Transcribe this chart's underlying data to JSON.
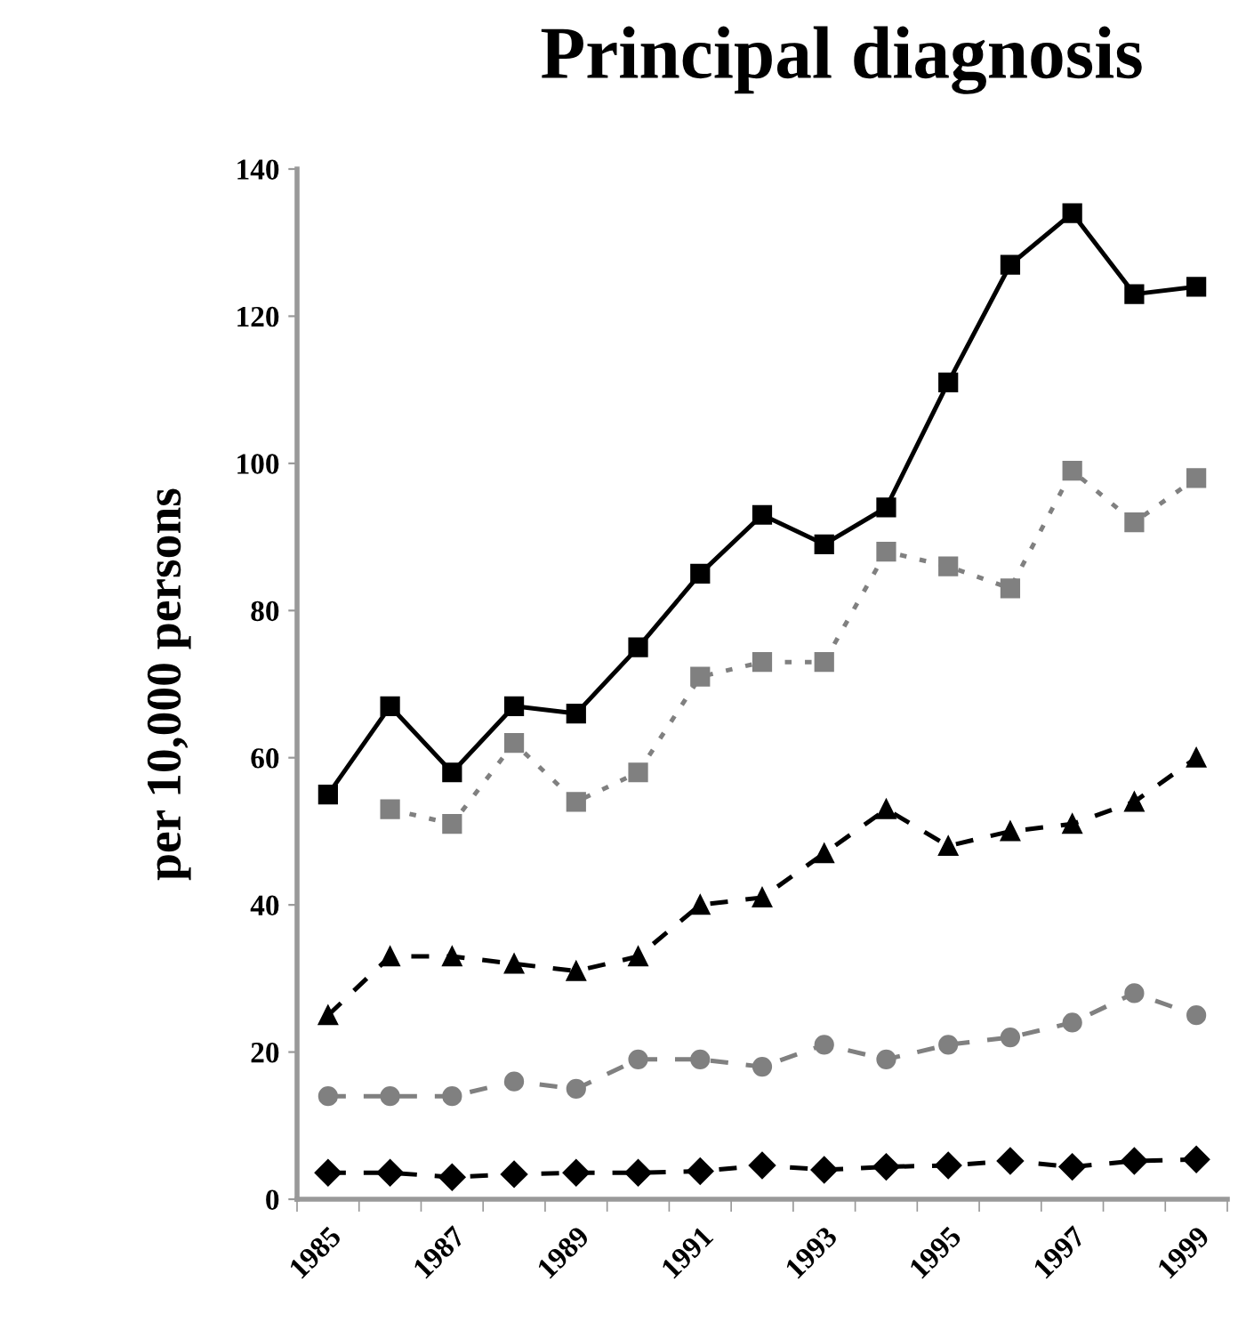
{
  "chart_data": {
    "type": "line",
    "title": "Principal diagnosis",
    "ylabel": "per 10,000 persons",
    "categories": [
      "1985",
      null,
      "1987",
      null,
      "1989",
      null,
      "1991",
      null,
      "1993",
      null,
      "1995",
      null,
      "1997",
      null,
      "1999"
    ],
    "series": [
      {
        "color": "#000000",
        "marker": "square",
        "line_style": "solid",
        "values": [
          55,
          67,
          58,
          67,
          66,
          75,
          85,
          93,
          89,
          94,
          111,
          127,
          134,
          123,
          124
        ]
      },
      {
        "color": "#808080",
        "marker": "square",
        "line_style": "dotted",
        "values": [
          null,
          53,
          51,
          62,
          54,
          58,
          71,
          73,
          73,
          88,
          86,
          83,
          99,
          92,
          98
        ]
      },
      {
        "color": "#000000",
        "marker": "triangle",
        "line_style": "dashed",
        "values": [
          25,
          33,
          33,
          32,
          31,
          33,
          40,
          41,
          47,
          53,
          48,
          50,
          51,
          54,
          60
        ]
      },
      {
        "color": "#808080",
        "marker": "circle",
        "line_style": "dashed",
        "values": [
          14,
          14,
          14,
          16,
          15,
          19,
          19,
          18,
          21,
          19,
          21,
          22,
          24,
          28,
          25
        ]
      },
      {
        "color": "#000000",
        "marker": "diamond",
        "line_style": "dashed",
        "values": [
          3.6,
          3.6,
          3.0,
          3.4,
          3.6,
          3.6,
          3.8,
          4.6,
          4.0,
          4.4,
          4.6,
          5.2,
          4.4,
          5.2,
          5.4
        ]
      }
    ],
    "ylim": [
      0,
      140
    ],
    "yticks": [
      0,
      20,
      40,
      60,
      80,
      100,
      120,
      140
    ],
    "grid": false,
    "legend": false
  }
}
